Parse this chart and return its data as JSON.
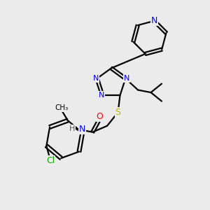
{
  "bg_color": "#ebebeb",
  "bond_color": "#000000",
  "n_color": "#0000ff",
  "o_color": "#ff0000",
  "s_color": "#b8b800",
  "cl_color": "#00aa00",
  "h_color": "#555555",
  "line_width": 1.6,
  "font_size": 9,
  "small_font": 8,
  "xlim": [
    0,
    10
  ],
  "ylim": [
    0,
    10
  ]
}
